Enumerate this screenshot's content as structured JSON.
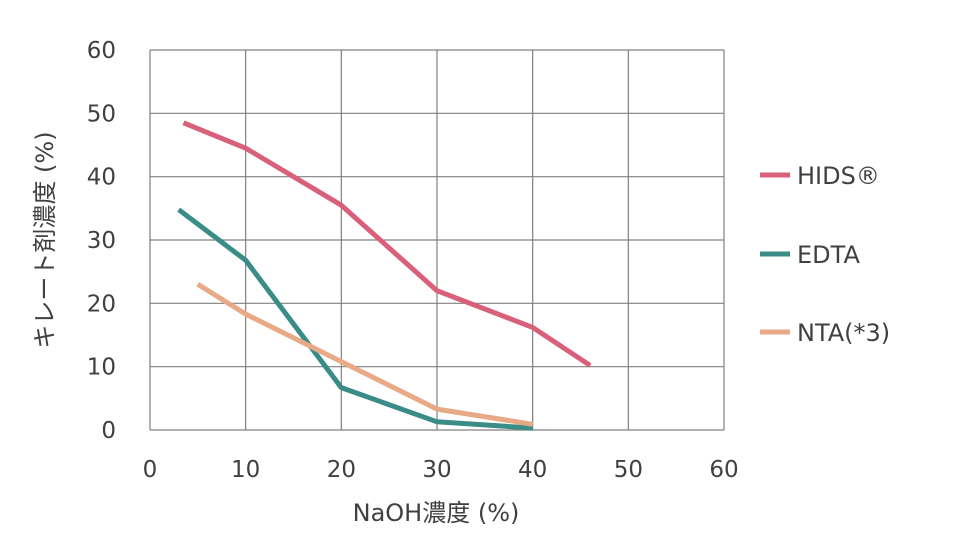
{
  "chart_data": {
    "type": "line",
    "xlabel": "NaOH濃度 (%)",
    "ylabel": "キレート剤濃度 (%)",
    "xlim": [
      0,
      60
    ],
    "ylim": [
      0,
      60
    ],
    "x_ticks": [
      "0",
      "10",
      "20",
      "30",
      "40",
      "50",
      "60"
    ],
    "y_ticks": [
      "0",
      "10",
      "20",
      "30",
      "40",
      "50",
      "60"
    ],
    "grid": true,
    "legend_position": "right",
    "series": [
      {
        "name": "HIDS®",
        "color": "#d9607a",
        "points": [
          [
            3.5,
            48.5
          ],
          [
            10,
            44.5
          ],
          [
            20,
            35.5
          ],
          [
            30,
            22
          ],
          [
            40,
            16.2
          ],
          [
            46,
            10.2
          ]
        ]
      },
      {
        "name": "EDTA",
        "color": "#3a8d87",
        "points": [
          [
            3,
            34.8
          ],
          [
            10,
            26.8
          ],
          [
            20,
            6.7
          ],
          [
            30,
            1.3
          ],
          [
            40,
            0.3
          ]
        ]
      },
      {
        "name": "NTA(*3)",
        "color": "#e8aa86",
        "points": [
          [
            5,
            23
          ],
          [
            10,
            18.3
          ],
          [
            20,
            10.8
          ],
          [
            30,
            3.3
          ],
          [
            40,
            0.9
          ]
        ]
      }
    ]
  }
}
